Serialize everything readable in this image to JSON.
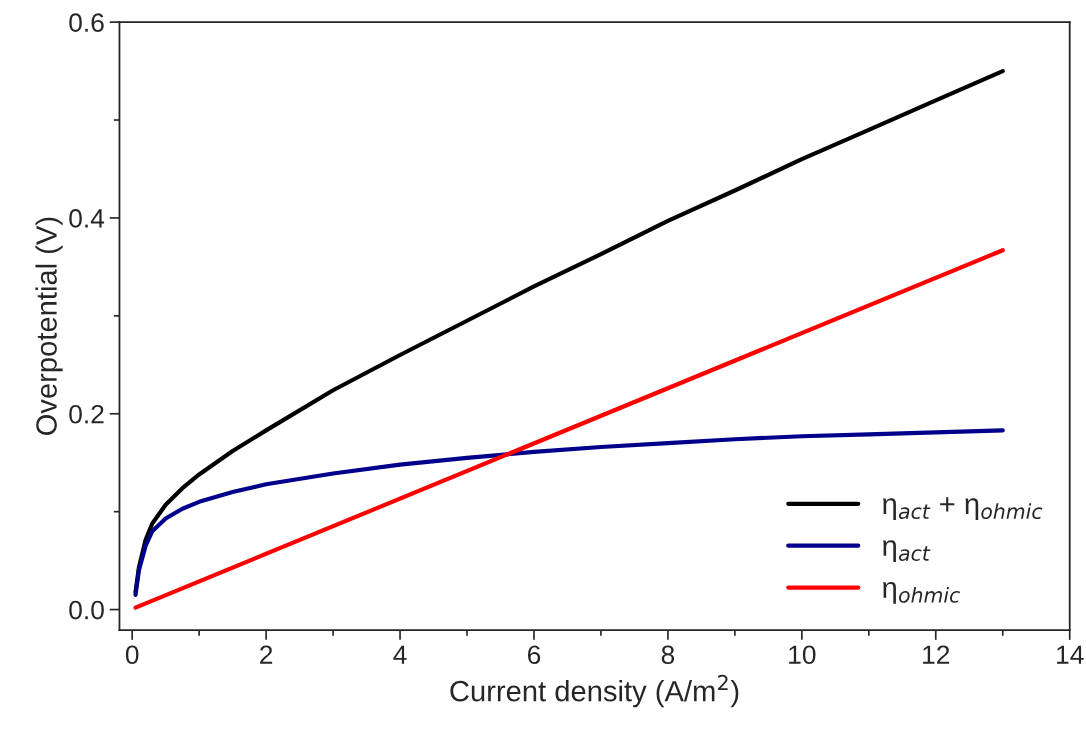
{
  "chart_data": {
    "type": "line",
    "xlabel": "Current density (A/m$^{2}$)",
    "ylabel": "Overpotential (V)",
    "xlim": [
      -0.19,
      14
    ],
    "xticks": [
      0,
      2,
      4,
      6,
      8,
      10,
      12,
      14
    ],
    "ylim": [
      -0.021,
      0.6
    ],
    "yticks": [
      {
        "value": 0,
        "label": "0.0"
      },
      0.2,
      0.4,
      0.6
    ],
    "legend": "bottom right",
    "grid": false,
    "marker": "none",
    "line_style": "solid",
    "series": [
      {
        "name": "η$_{act}$ + η$_{ohmic}$",
        "color": "#000000",
        "x": [
          0.05,
          0.1,
          0.2,
          0.3,
          0.5,
          0.75,
          1,
          1.5,
          2,
          3,
          4,
          5,
          6,
          7,
          8,
          9,
          10,
          11,
          12,
          13
        ],
        "values": [
          0.018,
          0.043,
          0.071,
          0.088,
          0.107,
          0.124,
          0.138,
          0.162,
          0.183,
          0.224,
          0.26,
          0.295,
          0.33,
          0.363,
          0.397,
          0.428,
          0.46,
          0.49,
          0.52,
          0.55
        ]
      },
      {
        "name": "η$_{act}$",
        "color": "#00008b",
        "x": [
          0.05,
          0.1,
          0.2,
          0.3,
          0.5,
          0.75,
          1,
          1.5,
          2,
          3,
          4,
          5,
          6,
          7,
          8,
          9,
          10,
          11,
          12,
          13
        ],
        "values": [
          0.015,
          0.04,
          0.065,
          0.08,
          0.093,
          0.103,
          0.11,
          0.12,
          0.128,
          0.139,
          0.148,
          0.155,
          0.161,
          0.166,
          0.17,
          0.174,
          0.177,
          0.179,
          0.181,
          0.183
        ]
      },
      {
        "name": "η$_{ohmic}$",
        "color": "#ff0000",
        "x": [
          0.05,
          13
        ],
        "values": [
          0.002,
          0.367
        ]
      }
    ]
  }
}
